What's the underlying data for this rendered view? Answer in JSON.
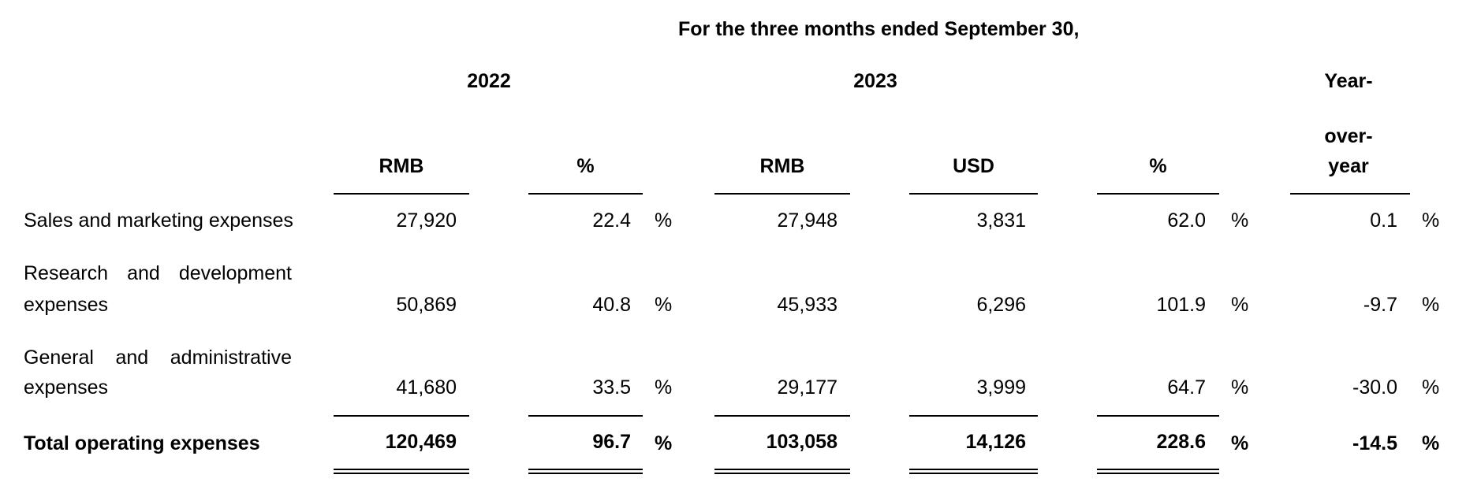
{
  "header": {
    "period": "For the three months ended September 30,",
    "year_2022": "2022",
    "year_2023": "2023",
    "yoy_line1": "Year-",
    "yoy_line2": "over-",
    "yoy_line3": "year"
  },
  "columns": {
    "rmb_2022": "RMB",
    "pct_2022": "%",
    "rmb_2023": "RMB",
    "usd_2023": "USD",
    "pct_2023": "%"
  },
  "rows": [
    {
      "label_line1": "Sales and marketing expenses",
      "rmb_2022": "27,920",
      "pct_2022": "22.4",
      "pct_2022_sign": "%",
      "rmb_2023": "27,948",
      "usd_2023": "3,831",
      "pct_2023": "62.0",
      "pct_2023_sign": "%",
      "yoy": "0.1",
      "yoy_sign": "%"
    },
    {
      "label_words": [
        "Research",
        "and",
        "development"
      ],
      "label_line2": "expenses",
      "rmb_2022": "50,869",
      "pct_2022": "40.8",
      "pct_2022_sign": "%",
      "rmb_2023": "45,933",
      "usd_2023": "6,296",
      "pct_2023": "101.9",
      "pct_2023_sign": "%",
      "yoy": "-9.7",
      "yoy_sign": "%"
    },
    {
      "label_words": [
        "General",
        "and",
        "administrative"
      ],
      "label_line2": "expenses",
      "rmb_2022": "41,680",
      "pct_2022": "33.5",
      "pct_2022_sign": "%",
      "rmb_2023": "29,177",
      "usd_2023": "3,999",
      "pct_2023": "64.7",
      "pct_2023_sign": "%",
      "yoy": "-30.0",
      "yoy_sign": "%"
    },
    {
      "label_line1": "Total operating expenses",
      "rmb_2022": "120,469",
      "pct_2022": "96.7",
      "pct_2022_sign": "%",
      "rmb_2023": "103,058",
      "usd_2023": "14,126",
      "pct_2023": "228.6",
      "pct_2023_sign": "%",
      "yoy": "-14.5",
      "yoy_sign": "%"
    }
  ]
}
